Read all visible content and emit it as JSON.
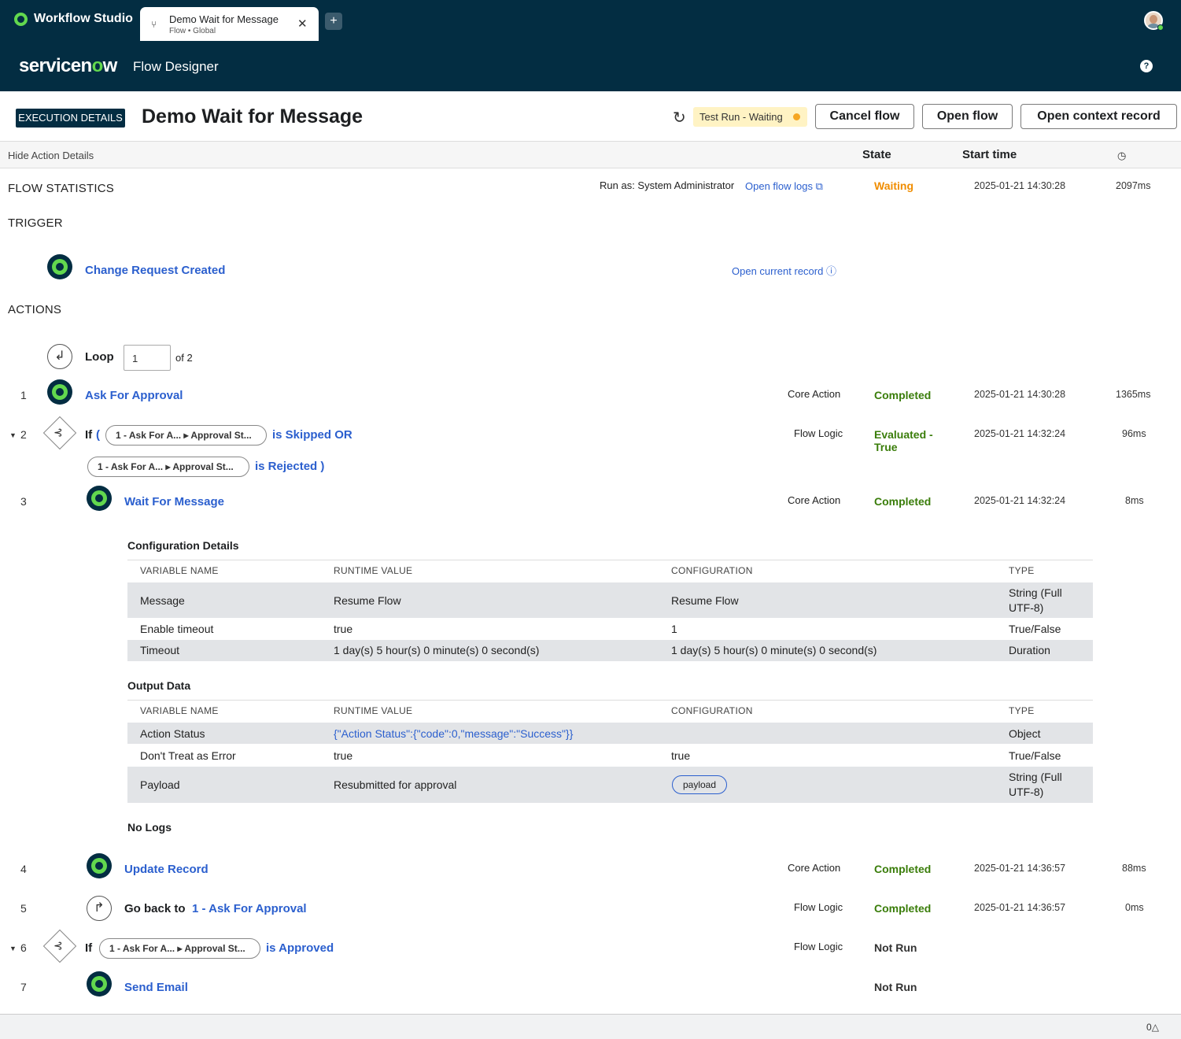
{
  "top_bar": {
    "brand": "Workflow Studio",
    "tab_title": "Demo Wait for Message",
    "tab_subtitle": "Flow • Global",
    "tab_close": "✕",
    "tab_add": "+"
  },
  "sub_bar": {
    "logo_text_1": "servicen",
    "logo_text_o": "o",
    "logo_text_2": "w",
    "title": "Flow Designer",
    "help": "?"
  },
  "header": {
    "badge": "EXECUTION DETAILS",
    "title": "Demo Wait for Message",
    "status": "Test Run - Waiting",
    "cancel_label": "Cancel flow",
    "open_label": "Open flow",
    "context_label": "Open context record"
  },
  "columns": {
    "hide_details": "Hide Action Details",
    "state": "State",
    "start_time": "Start time"
  },
  "flow_stats": {
    "label": "FLOW STATISTICS",
    "run_as": "Run as: System Administrator",
    "logs_link": "Open flow logs",
    "state": "Waiting",
    "start": "2025-01-21 14:30:28",
    "duration": "2097ms"
  },
  "trigger": {
    "label": "TRIGGER",
    "name": "Change Request Created",
    "record_link": "Open current record"
  },
  "actions_label": "ACTIONS",
  "loop": {
    "label": "Loop",
    "value": "1",
    "of": "of 2"
  },
  "steps": [
    {
      "num": "1",
      "name": "Ask For Approval",
      "type": "Core Action",
      "state": "Completed",
      "start": "2025-01-21 14:30:28",
      "duration": "1365ms"
    },
    {
      "num": "2",
      "if": "If",
      "open_paren": "(",
      "pill1_a": "1 - Ask For A...",
      "pill1_b": "Approval St...",
      "cond1": "is Skipped OR",
      "pill2_a": "1 - Ask For A...",
      "pill2_b": "Approval St...",
      "cond2": "is Rejected )",
      "type": "Flow Logic",
      "state_1": "Evaluated -",
      "state_2": "True",
      "start": "2025-01-21 14:32:24",
      "duration": "96ms"
    },
    {
      "num": "3",
      "name": "Wait For Message",
      "type": "Core Action",
      "state": "Completed",
      "start": "2025-01-21 14:32:24",
      "duration": "8ms"
    },
    {
      "num": "4",
      "name": "Update Record",
      "type": "Core Action",
      "state": "Completed",
      "start": "2025-01-21 14:36:57",
      "duration": "88ms"
    },
    {
      "num": "5",
      "goback": "Go back to",
      "target": "1 - Ask For Approval",
      "type": "Flow Logic",
      "state": "Completed",
      "start": "2025-01-21 14:36:57",
      "duration": "0ms"
    },
    {
      "num": "6",
      "if": "If",
      "pill_a": "1 - Ask For A...",
      "pill_b": "Approval St...",
      "cond": "is Approved",
      "type": "Flow Logic",
      "state": "Not Run"
    },
    {
      "num": "7",
      "name": "Send Email",
      "state": "Not Run"
    }
  ],
  "config": {
    "title": "Configuration Details",
    "headers": [
      "VARIABLE NAME",
      "RUNTIME VALUE",
      "CONFIGURATION",
      "TYPE"
    ],
    "rows": [
      {
        "name": "Message",
        "runtime": "Resume Flow",
        "config": "Resume Flow",
        "type_1": "String (Full",
        "type_2": "UTF-8)"
      },
      {
        "name": "Enable timeout",
        "runtime": "true",
        "config": "1",
        "type": "True/False"
      },
      {
        "name": "Timeout",
        "runtime": "1 day(s) 5 hour(s) 0 minute(s) 0 second(s)",
        "config": "1 day(s) 5 hour(s) 0 minute(s) 0 second(s)",
        "type": "Duration"
      }
    ]
  },
  "output": {
    "title": "Output Data",
    "headers": [
      "VARIABLE NAME",
      "RUNTIME VALUE",
      "CONFIGURATION",
      "TYPE"
    ],
    "rows": [
      {
        "name": "Action Status",
        "runtime": "{\"Action Status\":{\"code\":0,\"message\":\"Success\"}}",
        "config": "",
        "type": "Object"
      },
      {
        "name": "Don't Treat as Error",
        "runtime": "true",
        "config": "true",
        "type": "True/False"
      },
      {
        "name": "Payload",
        "runtime": "Resubmitted for approval",
        "config": "payload",
        "type_1": "String (Full",
        "type_2": "UTF-8)"
      }
    ]
  },
  "no_logs": "No Logs",
  "footer": {
    "count": "0"
  }
}
